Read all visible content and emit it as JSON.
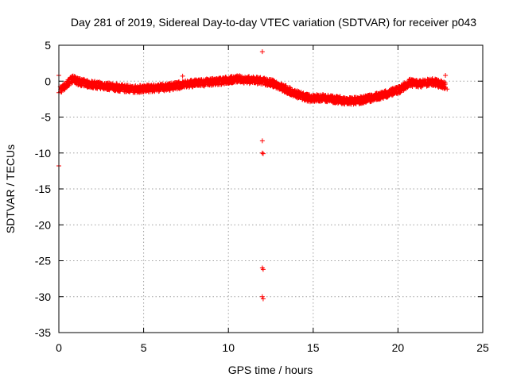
{
  "chart_data": {
    "type": "scatter",
    "title": "Day 281 of 2019, Sidereal Day-to-day VTEC variation (SDTVAR) for receiver p043",
    "xlabel": "GPS time / hours",
    "ylabel": "SDTVAR / TECUs",
    "xlim": [
      0,
      25
    ],
    "ylim": [
      -35,
      5
    ],
    "xticks": [
      0,
      5,
      10,
      15,
      20,
      25
    ],
    "yticks": [
      5,
      0,
      -5,
      -10,
      -15,
      -20,
      -25,
      -30,
      -35
    ],
    "xtick_labels": [
      "0",
      "5",
      "10",
      "15",
      "20",
      "25"
    ],
    "ytick_labels": [
      "5",
      "0",
      "-5",
      "-10",
      "-15",
      "-20",
      "-25",
      "-30",
      "-35"
    ],
    "grid": true,
    "marker": "+",
    "color": "#ff0000",
    "series": [
      {
        "name": "SDTVAR",
        "trend": [
          [
            0.1,
            -1.2
          ],
          [
            0.4,
            -0.6
          ],
          [
            0.8,
            0.3
          ],
          [
            1.2,
            -0.1
          ],
          [
            1.8,
            -0.4
          ],
          [
            2.5,
            -0.6
          ],
          [
            3.5,
            -0.9
          ],
          [
            4.5,
            -1.1
          ],
          [
            5.5,
            -1.0
          ],
          [
            6.5,
            -0.8
          ],
          [
            7.5,
            -0.4
          ],
          [
            8.5,
            -0.2
          ],
          [
            9.5,
            0.0
          ],
          [
            10.5,
            0.3
          ],
          [
            11.5,
            0.1
          ],
          [
            12.0,
            0.0
          ],
          [
            12.5,
            -0.2
          ],
          [
            13.2,
            -0.9
          ],
          [
            14.0,
            -1.8
          ],
          [
            14.8,
            -2.4
          ],
          [
            15.5,
            -2.3
          ],
          [
            16.2,
            -2.5
          ],
          [
            17.0,
            -2.8
          ],
          [
            17.7,
            -2.7
          ],
          [
            18.5,
            -2.3
          ],
          [
            19.3,
            -1.8
          ],
          [
            20.0,
            -1.3
          ],
          [
            20.7,
            -0.2
          ],
          [
            21.3,
            -0.4
          ],
          [
            22.0,
            -0.1
          ],
          [
            22.8,
            -0.6
          ]
        ],
        "outliers": [
          [
            12.0,
            4.1
          ],
          [
            12.0,
            -8.3
          ],
          [
            12.0,
            -10.0
          ],
          [
            12.05,
            -10.1
          ],
          [
            12.0,
            -26.0
          ],
          [
            12.05,
            -26.2
          ],
          [
            12.0,
            -30.0
          ],
          [
            12.05,
            -30.3
          ],
          [
            0.0,
            -11.8
          ],
          [
            0.0,
            0.8
          ],
          [
            0.0,
            -1.6
          ],
          [
            7.3,
            0.7
          ],
          [
            22.8,
            0.8
          ],
          [
            22.9,
            -1.1
          ]
        ]
      }
    ]
  }
}
